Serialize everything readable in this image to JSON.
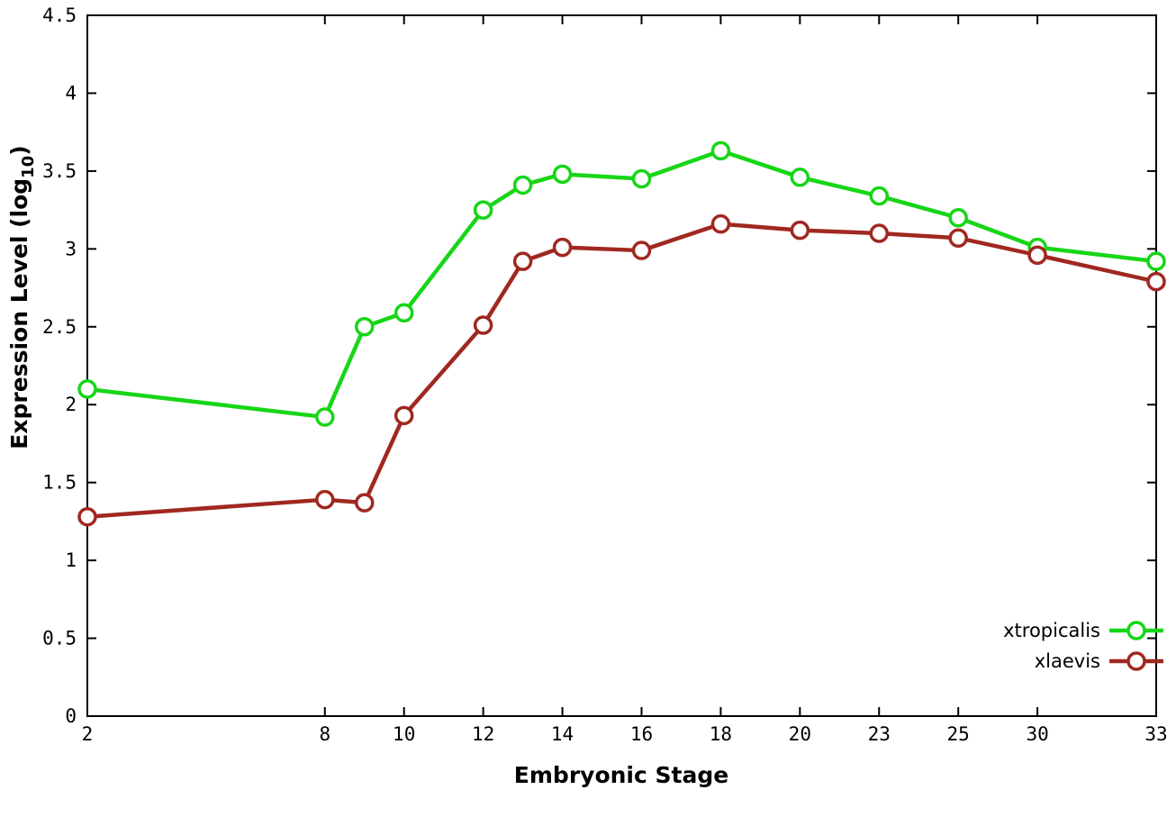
{
  "chart_data": {
    "type": "line",
    "title": "",
    "xlabel": "Embryonic Stage",
    "ylabel": "Expression Level (log10)",
    "ylabel_parts": {
      "prefix": "Expression Level (log",
      "sub": "10",
      "suffix": ")"
    },
    "ylim": [
      0,
      4.5
    ],
    "ytick_step": 0.5,
    "yticks": [
      {
        "label": "0",
        "value": 0
      },
      {
        "label": "0.5",
        "value": 0.5
      },
      {
        "label": "1",
        "value": 1
      },
      {
        "label": "1.5",
        "value": 1.5
      },
      {
        "label": "2",
        "value": 2
      },
      {
        "label": "2.5",
        "value": 2.5
      },
      {
        "label": "3",
        "value": 3
      },
      {
        "label": "3.5",
        "value": 3.5
      },
      {
        "label": "4",
        "value": 4
      },
      {
        "label": "4.5",
        "value": 4.5
      }
    ],
    "x_units_max": 13.5,
    "xticks": [
      {
        "label": "2",
        "pos": 0
      },
      {
        "label": "8",
        "pos": 3
      },
      {
        "label": "10",
        "pos": 4
      },
      {
        "label": "12",
        "pos": 5
      },
      {
        "label": "14",
        "pos": 6
      },
      {
        "label": "16",
        "pos": 7
      },
      {
        "label": "18",
        "pos": 8
      },
      {
        "label": "20",
        "pos": 9
      },
      {
        "label": "23",
        "pos": 10
      },
      {
        "label": "25",
        "pos": 11
      },
      {
        "label": "30",
        "pos": 12
      },
      {
        "label": "33",
        "pos": 13.5
      }
    ],
    "grid": false,
    "marker": "open-circle",
    "legend_position": "inside-bottom-right",
    "series": [
      {
        "name": "xtropicalis",
        "color": "#17d617",
        "points": [
          {
            "stage": "2",
            "pos": 0,
            "value": 2.1
          },
          {
            "stage": "8",
            "pos": 3,
            "value": 1.92
          },
          {
            "stage": "9",
            "pos": 3.5,
            "value": 2.5
          },
          {
            "stage": "10",
            "pos": 4,
            "value": 2.59
          },
          {
            "stage": "12",
            "pos": 5,
            "value": 3.25
          },
          {
            "stage": "13",
            "pos": 5.5,
            "value": 3.41
          },
          {
            "stage": "14",
            "pos": 6,
            "value": 3.48
          },
          {
            "stage": "16",
            "pos": 7,
            "value": 3.45
          },
          {
            "stage": "18",
            "pos": 8,
            "value": 3.63
          },
          {
            "stage": "20",
            "pos": 9,
            "value": 3.46
          },
          {
            "stage": "23",
            "pos": 10,
            "value": 3.34
          },
          {
            "stage": "25",
            "pos": 11,
            "value": 3.2
          },
          {
            "stage": "30",
            "pos": 12,
            "value": 3.01
          },
          {
            "stage": "33",
            "pos": 13.5,
            "value": 2.92
          }
        ]
      },
      {
        "name": "xlaevis",
        "color": "#a02820",
        "points": [
          {
            "stage": "2",
            "pos": 0,
            "value": 1.28
          },
          {
            "stage": "8",
            "pos": 3,
            "value": 1.39
          },
          {
            "stage": "9",
            "pos": 3.5,
            "value": 1.37
          },
          {
            "stage": "10",
            "pos": 4,
            "value": 1.93
          },
          {
            "stage": "12",
            "pos": 5,
            "value": 2.51
          },
          {
            "stage": "13",
            "pos": 5.5,
            "value": 2.92
          },
          {
            "stage": "14",
            "pos": 6,
            "value": 3.01
          },
          {
            "stage": "16",
            "pos": 7,
            "value": 2.99
          },
          {
            "stage": "18",
            "pos": 8,
            "value": 3.16
          },
          {
            "stage": "20",
            "pos": 9,
            "value": 3.12
          },
          {
            "stage": "23",
            "pos": 10,
            "value": 3.1
          },
          {
            "stage": "25",
            "pos": 11,
            "value": 3.07
          },
          {
            "stage": "30",
            "pos": 12,
            "value": 2.96
          },
          {
            "stage": "33",
            "pos": 13.5,
            "value": 2.79
          }
        ]
      }
    ]
  }
}
